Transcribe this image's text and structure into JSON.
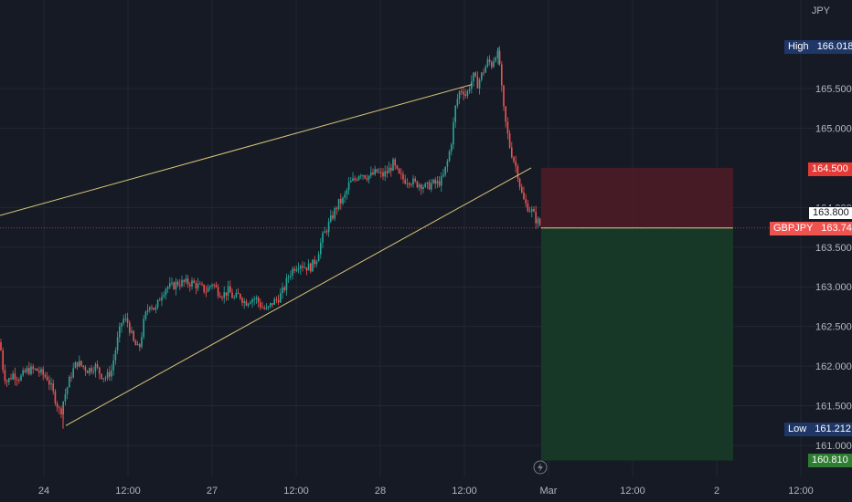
{
  "symbol": "GBPJPY",
  "currency": "JPY",
  "last_price": "163.742",
  "crosshair_price": "163.800",
  "high": {
    "label": "High",
    "value": "166.018"
  },
  "low": {
    "label": "Low",
    "value": "161.212"
  },
  "stop_loss_price": "164.500",
  "take_profit_price": "160.810",
  "colors": {
    "background": "#161a25",
    "grid": "#232733",
    "up": "#26a69a",
    "down": "#ef5350",
    "trendline": "#d9c77a",
    "stop_zone": "#4a1b25",
    "target_zone": "#173a26",
    "badge_navy": "#1f3767",
    "badge_red": "#e53935",
    "badge_green": "#2e7d32",
    "symbol_badge": "#ef5350"
  },
  "chart_data": {
    "type": "candlestick",
    "y_axis": {
      "ticks": [
        "165.500",
        "165.000",
        "164.000",
        "163.500",
        "163.000",
        "162.500",
        "162.000",
        "161.500",
        "161.000"
      ],
      "range": [
        160.5,
        166.3
      ]
    },
    "x_axis": {
      "ticks": [
        "24",
        "12:00",
        "27",
        "12:00",
        "28",
        "12:00",
        "Mar",
        "12:00",
        "2",
        "12:00"
      ]
    },
    "price_path": [
      [
        0,
        162.3
      ],
      [
        4,
        161.9
      ],
      [
        8,
        161.8
      ],
      [
        14,
        161.9
      ],
      [
        22,
        161.85
      ],
      [
        30,
        161.95
      ],
      [
        40,
        161.95
      ],
      [
        52,
        161.85
      ],
      [
        60,
        161.6
      ],
      [
        66,
        161.4
      ],
      [
        70,
        161.6
      ],
      [
        78,
        161.9
      ],
      [
        84,
        162.05
      ],
      [
        90,
        162.0
      ],
      [
        96,
        161.95
      ],
      [
        104,
        162.0
      ],
      [
        110,
        161.9
      ],
      [
        116,
        161.85
      ],
      [
        122,
        161.95
      ],
      [
        128,
        162.3
      ],
      [
        134,
        162.6
      ],
      [
        140,
        162.55
      ],
      [
        146,
        162.3
      ],
      [
        152,
        162.2
      ],
      [
        158,
        162.6
      ],
      [
        164,
        162.8
      ],
      [
        170,
        162.7
      ],
      [
        176,
        162.9
      ],
      [
        182,
        163.0
      ],
      [
        188,
        163.0
      ],
      [
        194,
        163.05
      ],
      [
        202,
        163.05
      ],
      [
        210,
        163.05
      ],
      [
        218,
        163.0
      ],
      [
        226,
        162.95
      ],
      [
        232,
        163.05
      ],
      [
        238,
        162.95
      ],
      [
        244,
        162.9
      ],
      [
        250,
        162.95
      ],
      [
        256,
        162.85
      ],
      [
        262,
        162.9
      ],
      [
        268,
        162.8
      ],
      [
        274,
        162.85
      ],
      [
        280,
        162.85
      ],
      [
        286,
        162.75
      ],
      [
        292,
        162.7
      ],
      [
        298,
        162.8
      ],
      [
        304,
        162.85
      ],
      [
        310,
        162.95
      ],
      [
        316,
        163.15
      ],
      [
        322,
        163.25
      ],
      [
        328,
        163.3
      ],
      [
        334,
        163.25
      ],
      [
        340,
        163.25
      ],
      [
        346,
        163.35
      ],
      [
        352,
        163.6
      ],
      [
        358,
        163.75
      ],
      [
        364,
        163.9
      ],
      [
        370,
        164.05
      ],
      [
        376,
        164.1
      ],
      [
        382,
        164.3
      ],
      [
        388,
        164.35
      ],
      [
        394,
        164.45
      ],
      [
        400,
        164.4
      ],
      [
        406,
        164.4
      ],
      [
        412,
        164.45
      ],
      [
        418,
        164.4
      ],
      [
        424,
        164.45
      ],
      [
        430,
        164.55
      ],
      [
        436,
        164.4
      ],
      [
        442,
        164.35
      ],
      [
        448,
        164.35
      ],
      [
        454,
        164.3
      ],
      [
        460,
        164.3
      ],
      [
        466,
        164.25
      ],
      [
        472,
        164.3
      ],
      [
        478,
        164.3
      ],
      [
        484,
        164.35
      ],
      [
        490,
        164.6
      ],
      [
        494,
        164.85
      ],
      [
        498,
        165.25
      ],
      [
        502,
        165.45
      ],
      [
        506,
        165.5
      ],
      [
        510,
        165.4
      ],
      [
        514,
        165.55
      ],
      [
        518,
        165.65
      ],
      [
        522,
        165.55
      ],
      [
        526,
        165.65
      ],
      [
        530,
        165.75
      ],
      [
        534,
        165.85
      ],
      [
        538,
        165.8
      ],
      [
        542,
        165.95
      ],
      [
        546,
        165.9
      ],
      [
        550,
        165.3
      ],
      [
        554,
        165.0
      ],
      [
        558,
        164.75
      ],
      [
        562,
        164.6
      ],
      [
        566,
        164.45
      ],
      [
        570,
        164.2
      ],
      [
        574,
        164.05
      ],
      [
        578,
        164.0
      ],
      [
        582,
        163.95
      ],
      [
        586,
        163.85
      ],
      [
        590,
        163.8
      ],
      [
        592,
        163.742
      ]
    ],
    "channel": {
      "upper": [
        [
          0,
          163.9
        ],
        [
          516,
          165.55
        ]
      ],
      "lower": [
        [
          72,
          161.25
        ],
        [
          581,
          164.5
        ]
      ]
    },
    "position": {
      "side": "short",
      "entry": 163.742,
      "stop": 164.5,
      "target": 160.81
    }
  }
}
